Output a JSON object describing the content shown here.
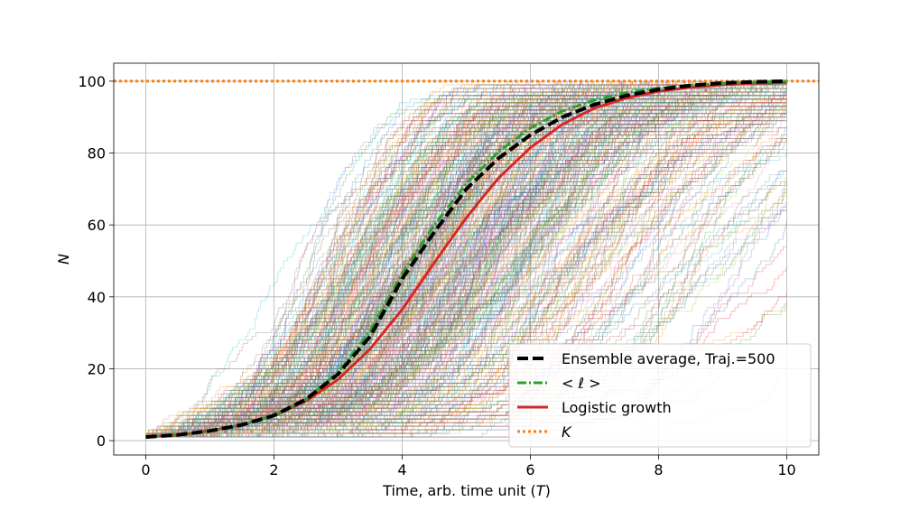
{
  "chart_data": {
    "type": "line",
    "title": "",
    "xlabel": "Time, arb. time unit (",
    "xlabel_var": "T",
    "xlabel_close": ")",
    "ylabel": "N",
    "xlim": [
      -0.5,
      10.5
    ],
    "ylim": [
      -4,
      105
    ],
    "xticks": [
      0,
      2,
      4,
      6,
      8,
      10
    ],
    "yticks": [
      0,
      20,
      40,
      60,
      80,
      100
    ],
    "xtick_labels": [
      "0",
      "2",
      "4",
      "6",
      "8",
      "10"
    ],
    "ytick_labels": [
      "0",
      "20",
      "40",
      "60",
      "80",
      "100"
    ],
    "grid": true,
    "legend_position": "bottom-right",
    "trajectory_count": 500,
    "trajectory_max": 100,
    "trajectory_colors": [
      "#1f77b4",
      "#ff7f0e",
      "#2ca02c",
      "#d62728",
      "#9467bd",
      "#8c564b",
      "#e377c2",
      "#7f7f7f",
      "#bcbd22",
      "#17becf"
    ],
    "series": [
      {
        "name": "Ensemble average, Traj.=500",
        "color": "#000000",
        "style": "dashed",
        "x": [
          0,
          0.5,
          1,
          1.5,
          2,
          2.5,
          3,
          3.5,
          4,
          4.5,
          5,
          5.5,
          6,
          6.5,
          7,
          7.5,
          8,
          8.5,
          9,
          9.5,
          10
        ],
        "y": [
          1,
          1.6,
          2.7,
          4.4,
          7,
          11.5,
          18.5,
          29,
          45,
          58,
          70,
          78.5,
          85,
          90,
          93.5,
          96,
          97.7,
          98.8,
          99.5,
          99.8,
          100
        ]
      },
      {
        "name": "< ℓ >",
        "color": "#2ca02c",
        "style": "dashdot",
        "x": [
          0,
          0.5,
          1,
          1.5,
          2,
          2.5,
          3,
          3.5,
          4,
          4.5,
          5,
          5.5,
          6,
          6.5,
          7,
          7.5,
          8,
          8.5,
          9,
          9.5,
          10
        ],
        "y": [
          1,
          1.6,
          2.7,
          4.4,
          7.1,
          11.5,
          19,
          30.5,
          46.5,
          60,
          71.5,
          80.3,
          87,
          91.7,
          94.7,
          96.8,
          98.1,
          98.9,
          99.4,
          99.7,
          100
        ]
      },
      {
        "name": "Logistic growth",
        "color": "#d62728",
        "style": "solid",
        "x": [
          0,
          0.5,
          1,
          1.5,
          2,
          2.5,
          3,
          3.5,
          4,
          4.5,
          5,
          5.5,
          6,
          6.5,
          7,
          7.5,
          8,
          8.5,
          9,
          9.5,
          10
        ],
        "y": [
          1,
          1.6,
          2.7,
          4.4,
          7,
          11,
          17,
          25.5,
          36.5,
          49.5,
          62,
          73,
          81.5,
          88,
          92.5,
          95.3,
          97.2,
          98.3,
          99,
          99.4,
          99.6
        ]
      },
      {
        "name": "K",
        "color": "#ff7f0e",
        "style": "dotted",
        "x": [
          -0.5,
          10.5
        ],
        "y": [
          100,
          100
        ]
      }
    ]
  }
}
